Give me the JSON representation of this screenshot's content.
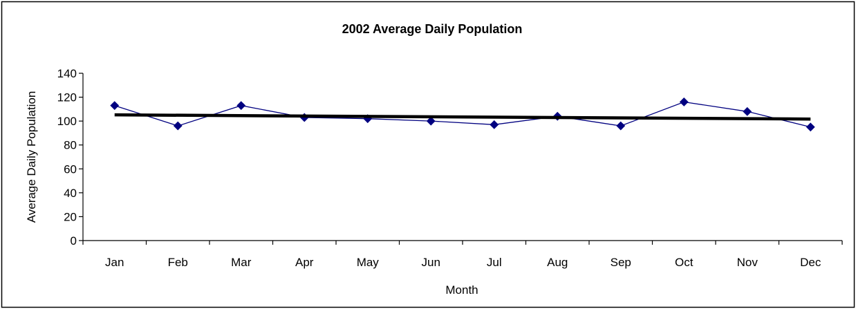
{
  "chart_data": {
    "type": "line",
    "title": "2002 Average Daily Population",
    "xlabel": "Month",
    "ylabel": "Average Daily Population",
    "categories": [
      "Jan",
      "Feb",
      "Mar",
      "Apr",
      "May",
      "Jun",
      "Jul",
      "Aug",
      "Sep",
      "Oct",
      "Nov",
      "Dec"
    ],
    "ylim": [
      0,
      140
    ],
    "yticks": [
      "0",
      "20",
      "40",
      "60",
      "80",
      "100",
      "120",
      "140"
    ],
    "grid": false,
    "legend": "none",
    "series": [
      {
        "values": [
          113,
          96,
          113,
          103,
          102,
          100,
          97,
          104,
          96,
          116,
          108,
          95
        ],
        "color": "#000080",
        "marker": "diamond"
      }
    ],
    "trendline": {
      "type": "linear",
      "start": 105.2,
      "end": 101.7,
      "color": "#000000"
    }
  }
}
